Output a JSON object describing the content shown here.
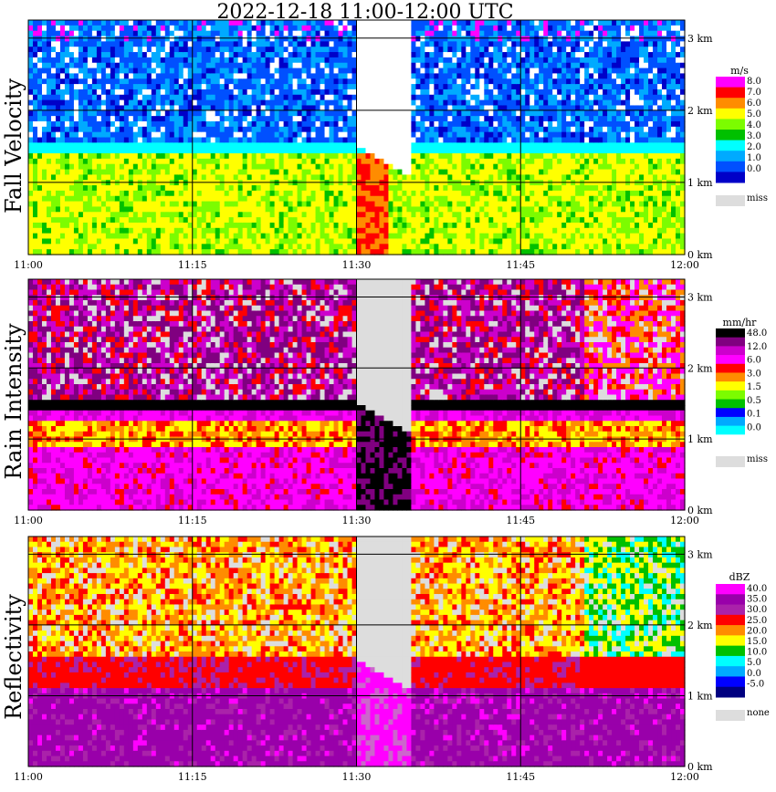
{
  "title": "2022-12-18   11:00-12:00 UTC",
  "chart_data": [
    {
      "type": "heatmap",
      "ylabel": "Fall Velocity",
      "x_ticks": [
        "11:00",
        "11:15",
        "11:30",
        "11:45",
        "12:00"
      ],
      "y_ticks": [
        "0 km",
        "1 km",
        "2 km",
        "3 km"
      ],
      "legend_unit": "m/s",
      "legend_labels": [
        "8.0",
        "7.0",
        "6.0",
        "5.0",
        "4.0",
        "3.0",
        "2.0",
        "1.0",
        "0.0"
      ],
      "legend_colors": [
        "#ff00ff",
        "#ff0000",
        "#ff8c00",
        "#ffff00",
        "#7cfc00",
        "#00c000",
        "#00ffff",
        "#00aaff",
        "#0050ff",
        "#0000c8"
      ],
      "missing_label": "miss",
      "missing_color": "#dddddd"
    },
    {
      "type": "heatmap",
      "ylabel": "Rain Intensity",
      "x_ticks": [
        "11:00",
        "11:15",
        "11:30",
        "11:45",
        "12:00"
      ],
      "y_ticks": [
        "0 km",
        "1 km",
        "2 km",
        "3 km"
      ],
      "legend_unit": "mm/hr",
      "legend_labels": [
        "48.0",
        "12.0",
        "6.0",
        "3.0",
        "1.5",
        "0.5",
        "0.1",
        "0.0"
      ],
      "legend_colors": [
        "#000000",
        "#800080",
        "#cc00cc",
        "#ff00ff",
        "#ff0000",
        "#ff8c00",
        "#ffff00",
        "#7cfc00",
        "#00c000",
        "#0000ff",
        "#00aaff",
        "#00ffff",
        "#ffffff"
      ],
      "missing_label": "miss",
      "missing_color": "#dddddd"
    },
    {
      "type": "heatmap",
      "ylabel": "Reflectivity",
      "x_ticks": [
        "11:00",
        "11:15",
        "11:30",
        "11:45",
        "12:00"
      ],
      "y_ticks": [
        "0 km",
        "1 km",
        "2 km",
        "3 km"
      ],
      "legend_unit": "dBZ",
      "legend_labels": [
        "40.0",
        "35.0",
        "30.0",
        "25.0",
        "20.0",
        "15.0",
        "10.0",
        "5.0",
        "0.0",
        "-5.0"
      ],
      "legend_colors": [
        "#ff00ff",
        "#9900aa",
        "#aa22aa",
        "#ff0000",
        "#ff8c00",
        "#ffff00",
        "#00c000",
        "#00ffff",
        "#00aaff",
        "#0000ff",
        "#000080"
      ],
      "missing_label": "none",
      "missing_color": "#dddddd"
    }
  ]
}
